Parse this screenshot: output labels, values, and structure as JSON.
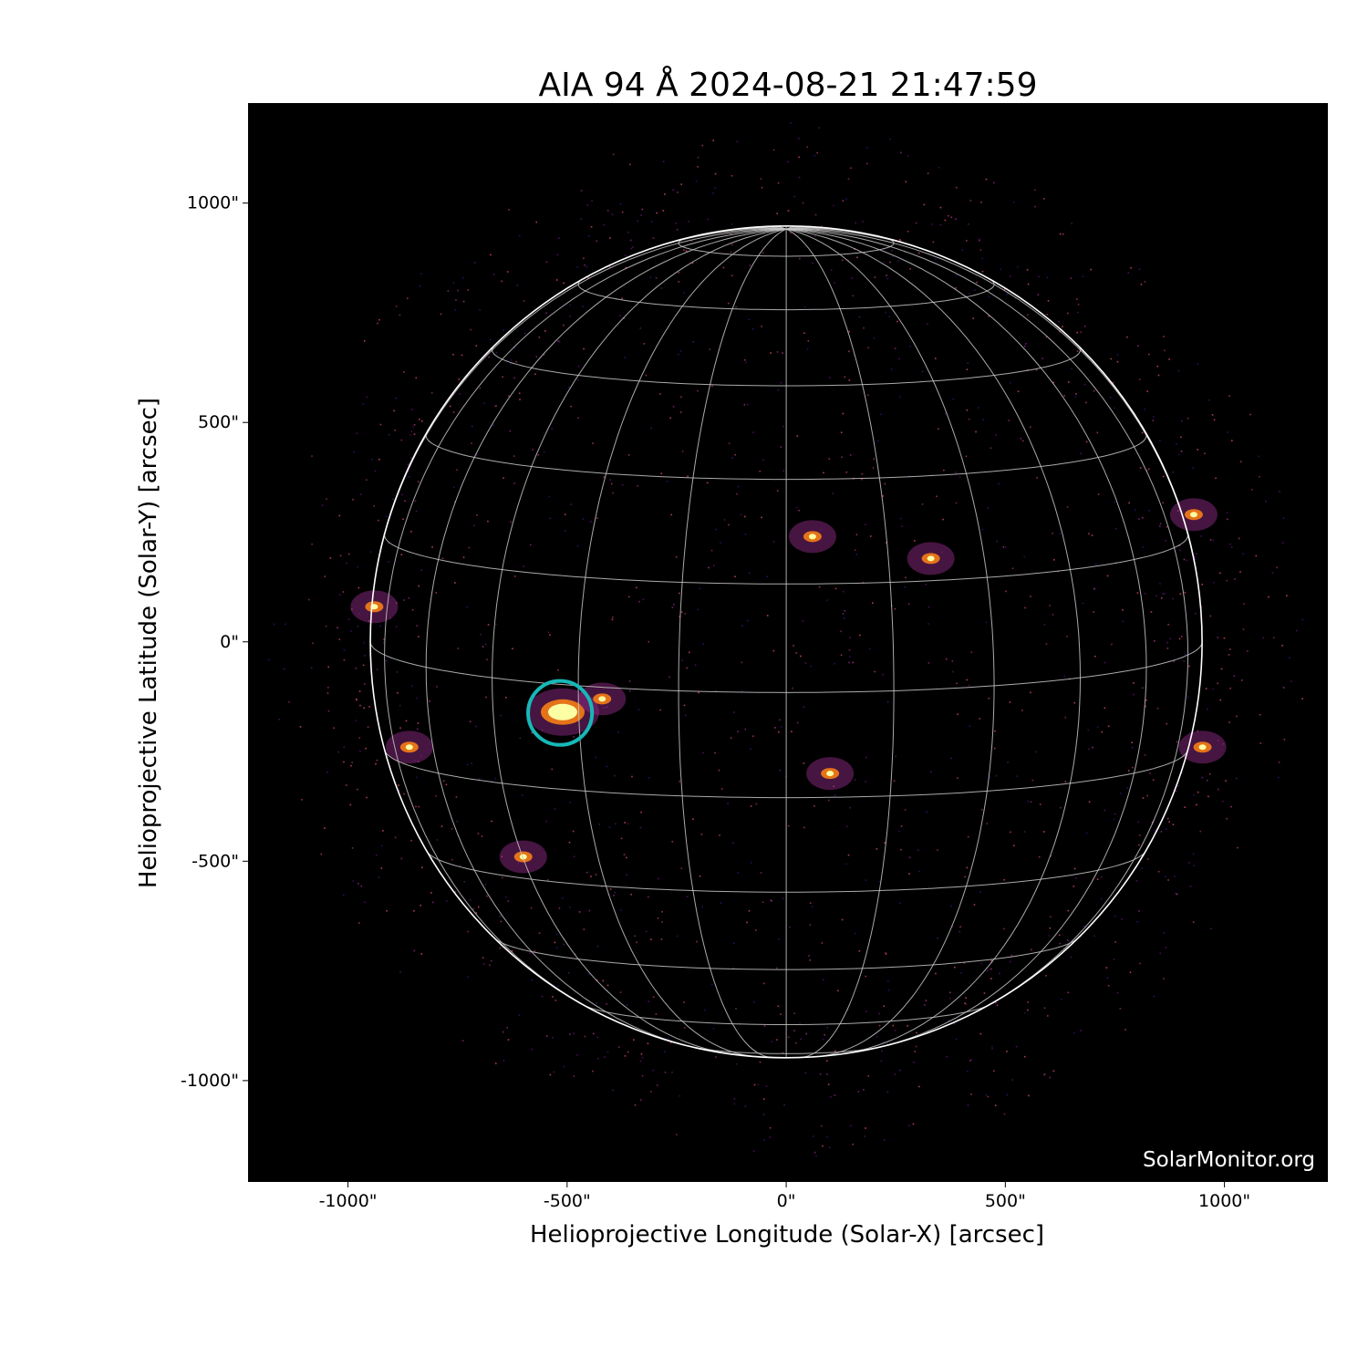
{
  "chart_data": {
    "type": "image",
    "title": "AIA 94 Å 2024-08-21 21:47:59",
    "xlabel": "Helioprojective Longitude (Solar-X) [arcsec]",
    "ylabel": "Helioprojective Latitude (Solar-Y) [arcsec]",
    "xlim": [
      -1228,
      1236
    ],
    "ylim": [
      -1231,
      1228
    ],
    "xticks": [
      {
        "value": -1000,
        "label": "-1000\""
      },
      {
        "value": -500,
        "label": "-500\""
      },
      {
        "value": 0,
        "label": "0\""
      },
      {
        "value": 500,
        "label": "500\""
      },
      {
        "value": 1000,
        "label": "1000\""
      }
    ],
    "yticks": [
      {
        "value": 1000,
        "label": "1000\""
      },
      {
        "value": 500,
        "label": "500\""
      },
      {
        "value": 0,
        "label": "0\""
      },
      {
        "value": -500,
        "label": "-500\""
      },
      {
        "value": -1000,
        "label": "-1000\""
      }
    ],
    "colormap": "inferno-like (black-purple-orange-yellow)",
    "solar_radius_arcsec": 949,
    "b0_deg": 7,
    "grid_spacing_deg": 15,
    "highlight_marker": {
      "x": -516,
      "y": -162,
      "radius_arcsec": 73,
      "color": "#17b8b8"
    },
    "bright_regions": [
      {
        "x": -510,
        "y": -160
      },
      {
        "x": -420,
        "y": -130
      },
      {
        "x": 60,
        "y": 240
      },
      {
        "x": 330,
        "y": 190
      },
      {
        "x": 100,
        "y": -300
      },
      {
        "x": 930,
        "y": 290
      },
      {
        "x": 950,
        "y": -240
      },
      {
        "x": -860,
        "y": -240
      },
      {
        "x": -600,
        "y": -490
      },
      {
        "x": -940,
        "y": 80
      }
    ],
    "watermark": "SolarMonitor.org"
  }
}
